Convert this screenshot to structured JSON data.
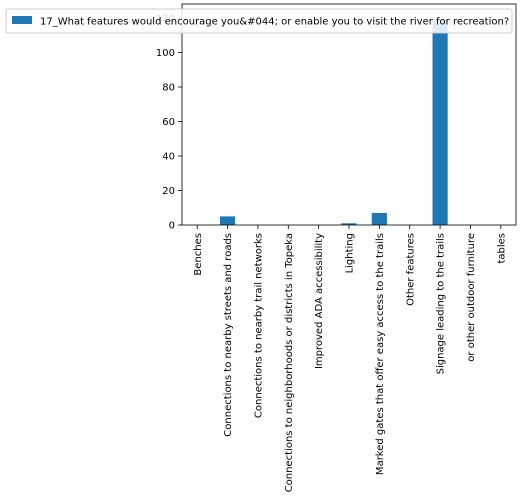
{
  "chart_data": {
    "type": "bar",
    "categories": [
      "Benches",
      "Connections to nearby streets and roads",
      "Connections to nearby trail networks",
      "Connections to neighborhoods or districts in Topeka",
      "Improved ADA accessibility",
      "Lighting",
      "Marked gates that offer easy access to the trails",
      "Other features",
      "Signage leading to the trails",
      "or other outdoor furniture",
      "tables"
    ],
    "series": [
      {
        "name": "17_What features would encourage you&#044; or enable you to visit the river for recreation?",
        "values": [
          0,
          5,
          0,
          0,
          0,
          1,
          7,
          0,
          119,
          0,
          0
        ],
        "color": "#1f77b4"
      }
    ],
    "yticks": [
      "0",
      "20",
      "40",
      "60",
      "80",
      "100",
      "120"
    ],
    "ylim": [
      0,
      120
    ],
    "legend_position": "top",
    "grid": false
  }
}
